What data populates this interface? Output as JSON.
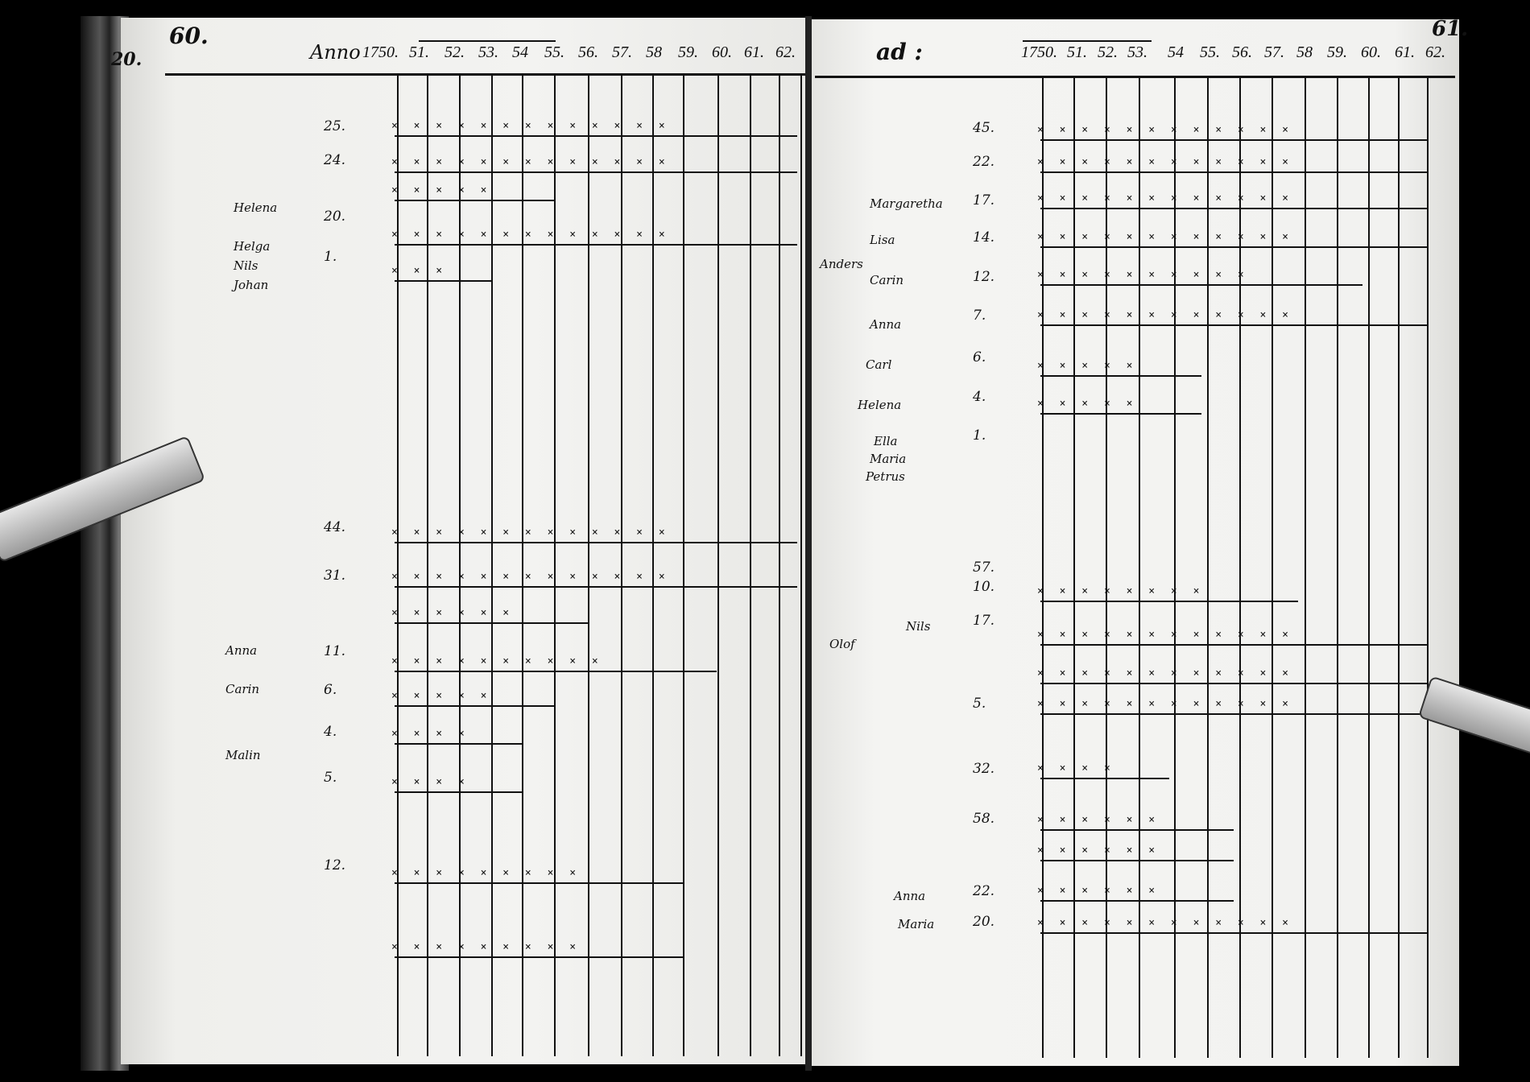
{
  "left_page": {
    "page_number": "60.",
    "margin_number": "20.",
    "column_heading": "Anno",
    "years": [
      "1750.",
      "51.",
      "52.",
      "53.",
      "54",
      "55.",
      "56.",
      "57.",
      "58",
      "59.",
      "60.",
      "61.",
      "62."
    ],
    "ages": [
      "25.",
      "24.",
      "20.",
      "1.",
      "44.",
      "31.",
      "11.",
      "6.",
      "4.",
      "5.",
      "12."
    ],
    "names": [
      "Helena",
      "Helga",
      "Nils",
      "Johan",
      "Anna",
      "Carin",
      "Malin"
    ]
  },
  "right_page": {
    "page_number": "61.",
    "section_mark": "ad :",
    "years": [
      "1750.",
      "51.",
      "52.",
      "53.",
      "54",
      "55.",
      "56.",
      "57.",
      "58",
      "59.",
      "60.",
      "61.",
      "62."
    ],
    "ages": [
      "45.",
      "22.",
      "17.",
      "14.",
      "12.",
      "7.",
      "6.",
      "4.",
      "1.",
      "57.",
      "10.",
      "17.",
      "5.",
      "32.",
      "58.",
      "22.",
      "20."
    ],
    "names": [
      "Margaretha",
      "Lisa",
      "Anders",
      "Carin",
      "Anna",
      "Carl",
      "Helena",
      "Ella",
      "Maria",
      "Petrus",
      "Nils",
      "Olof",
      "Anna",
      "Maria"
    ]
  }
}
